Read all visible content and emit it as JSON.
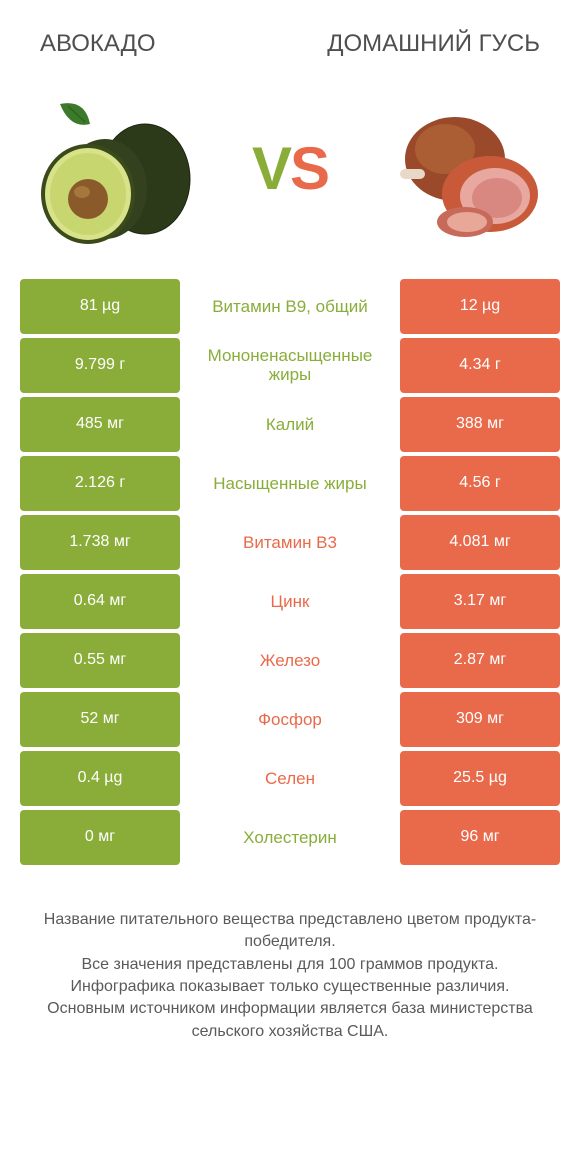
{
  "colors": {
    "green": "#8aad3a",
    "orange": "#e96a4a",
    "text": "#4f4f4f",
    "bg": "#ffffff"
  },
  "header": {
    "left": "АВОКАДО",
    "right": "ДОМАШНИЙ ГУСЬ",
    "vs_v": "V",
    "vs_s": "S"
  },
  "rows": [
    {
      "left": "81 µg",
      "mid": "Витамин B9, общий",
      "right": "12 µg",
      "winner": "left"
    },
    {
      "left": "9.799 г",
      "mid": "Мононенасыщенные жиры",
      "right": "4.34 г",
      "winner": "left"
    },
    {
      "left": "485 мг",
      "mid": "Калий",
      "right": "388 мг",
      "winner": "left"
    },
    {
      "left": "2.126 г",
      "mid": "Насыщенные жиры",
      "right": "4.56 г",
      "winner": "left"
    },
    {
      "left": "1.738 мг",
      "mid": "Витамин B3",
      "right": "4.081 мг",
      "winner": "right"
    },
    {
      "left": "0.64 мг",
      "mid": "Цинк",
      "right": "3.17 мг",
      "winner": "right"
    },
    {
      "left": "0.55 мг",
      "mid": "Железо",
      "right": "2.87 мг",
      "winner": "right"
    },
    {
      "left": "52 мг",
      "mid": "Фосфор",
      "right": "309 мг",
      "winner": "right"
    },
    {
      "left": "0.4 µg",
      "mid": "Селен",
      "right": "25.5 µg",
      "winner": "right"
    },
    {
      "left": "0 мг",
      "mid": "Холестерин",
      "right": "96 мг",
      "winner": "left"
    }
  ],
  "footer": {
    "line1": "Название питательного вещества представлено цветом продукта-победителя.",
    "line2": "Все значения представлены для 100 граммов продукта.",
    "line3": "Инфографика показывает только существенные различия.",
    "line4": "Основным источником информации является база министерства сельского хозяйства США."
  },
  "fontsize": {
    "title": 24,
    "vs": 60,
    "cell": 16,
    "mid": 17,
    "footer": 16
  }
}
